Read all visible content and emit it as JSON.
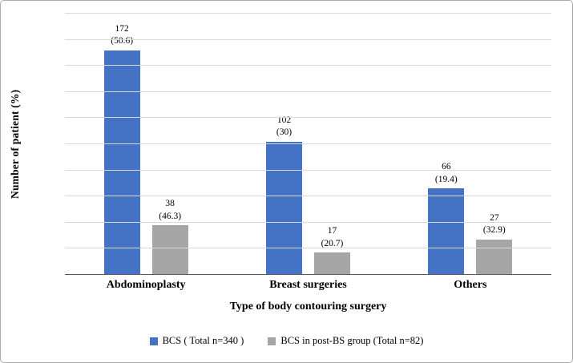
{
  "chart_data": {
    "type": "bar",
    "title": "",
    "categories": [
      "Abdominoplasty",
      "Breast surgeries",
      "Others"
    ],
    "series": [
      {
        "name": "BCS ( Total n=340 )",
        "color": "#4472C4",
        "values": [
          172,
          102,
          66
        ],
        "labels": [
          "172\n(50.6)",
          "102\n(30)",
          "66\n(19.4)"
        ]
      },
      {
        "name": "BCS in post-BS group (Total n=82)",
        "color": "#A6A6A6",
        "values": [
          38,
          17,
          27
        ],
        "labels": [
          "38\n(46.3)",
          "17\n(20.7)",
          "27\n(32.9)"
        ]
      }
    ],
    "xlabel": "Type of body contouring surgery",
    "ylabel": "Number of patient (%)",
    "ylim": [
      0,
      200
    ],
    "ytick_step": 20,
    "grid": true,
    "legend_position": "bottom"
  },
  "colors": {
    "gridline": "#D9D9D9",
    "axis_line": "#595959",
    "figure_border": "#ABABAB",
    "text": "#000000"
  }
}
